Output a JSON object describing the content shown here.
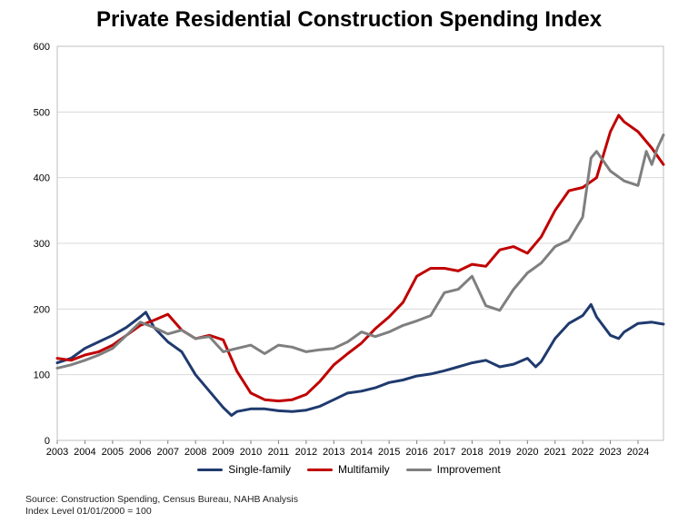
{
  "chart_data": {
    "type": "line",
    "title": "Private Residential Construction Spending Index",
    "xlabel": "",
    "ylabel": "",
    "xlim": [
      2003,
      2024.92
    ],
    "ylim": [
      0,
      600
    ],
    "y_ticks": [
      "0",
      "100",
      "200",
      "300",
      "400",
      "500",
      "600"
    ],
    "x_ticks": [
      "2003",
      "2004",
      "2005",
      "2006",
      "2007",
      "2008",
      "2009",
      "2010",
      "2011",
      "2012",
      "2013",
      "2014",
      "2015",
      "2016",
      "2017",
      "2018",
      "2019",
      "2020",
      "2021",
      "2022",
      "2023",
      "2024"
    ],
    "grid": true,
    "legend_position": "bottom",
    "series": [
      {
        "name": "Single-family",
        "color": "#1f3a6e",
        "x": [
          2003,
          2003.5,
          2004,
          2004.5,
          2005,
          2005.5,
          2006,
          2006.2,
          2006.5,
          2007,
          2007.5,
          2008,
          2008.5,
          2009,
          2009.3,
          2009.5,
          2010,
          2010.5,
          2011,
          2011.5,
          2012,
          2012.5,
          2013,
          2013.5,
          2014,
          2014.5,
          2015,
          2015.5,
          2016,
          2016.5,
          2017,
          2017.5,
          2018,
          2018.5,
          2019,
          2019.5,
          2020,
          2020.3,
          2020.5,
          2021,
          2021.5,
          2022,
          2022.3,
          2022.5,
          2023,
          2023.3,
          2023.5,
          2024,
          2024.5,
          2024.92
        ],
        "y": [
          118,
          125,
          140,
          150,
          160,
          172,
          188,
          195,
          172,
          150,
          135,
          100,
          75,
          50,
          38,
          44,
          48,
          48,
          45,
          44,
          46,
          52,
          62,
          72,
          75,
          80,
          88,
          92,
          98,
          101,
          106,
          112,
          118,
          122,
          112,
          116,
          125,
          112,
          120,
          155,
          178,
          190,
          207,
          188,
          160,
          155,
          165,
          178,
          180,
          177
        ]
      },
      {
        "name": "Multifamily",
        "color": "#c00000",
        "x": [
          2003,
          2003.5,
          2004,
          2004.5,
          2005,
          2005.5,
          2006,
          2006.5,
          2007,
          2007.5,
          2008,
          2008.5,
          2009,
          2009.5,
          2010,
          2010.5,
          2011,
          2011.5,
          2012,
          2012.5,
          2013,
          2013.5,
          2014,
          2014.5,
          2015,
          2015.5,
          2016,
          2016.5,
          2017,
          2017.5,
          2018,
          2018.5,
          2019,
          2019.5,
          2020,
          2020.5,
          2021,
          2021.5,
          2022,
          2022.5,
          2023,
          2023.3,
          2023.5,
          2024,
          2024.5,
          2024.92
        ],
        "y": [
          125,
          122,
          130,
          135,
          145,
          160,
          175,
          183,
          192,
          168,
          155,
          160,
          153,
          105,
          72,
          62,
          60,
          62,
          70,
          90,
          115,
          132,
          148,
          170,
          188,
          210,
          250,
          262,
          262,
          258,
          268,
          265,
          290,
          295,
          285,
          310,
          350,
          380,
          385,
          400,
          470,
          495,
          485,
          470,
          445,
          420
        ]
      },
      {
        "name": "Improvement",
        "color": "#7f7f7f",
        "x": [
          2003,
          2003.5,
          2004,
          2004.5,
          2005,
          2005.5,
          2006,
          2006.5,
          2007,
          2007.5,
          2008,
          2008.5,
          2009,
          2009.5,
          2010,
          2010.5,
          2011,
          2011.5,
          2012,
          2012.5,
          2013,
          2013.5,
          2014,
          2014.5,
          2015,
          2015.5,
          2016,
          2016.5,
          2017,
          2017.5,
          2018,
          2018.5,
          2019,
          2019.5,
          2020,
          2020.5,
          2021,
          2021.5,
          2022,
          2022.3,
          2022.5,
          2023,
          2023.5,
          2024,
          2024.3,
          2024.5,
          2024.7,
          2024.92
        ],
        "y": [
          110,
          115,
          122,
          130,
          140,
          160,
          180,
          172,
          162,
          168,
          155,
          158,
          135,
          140,
          145,
          132,
          145,
          142,
          135,
          138,
          140,
          150,
          165,
          158,
          165,
          175,
          182,
          190,
          225,
          230,
          250,
          205,
          198,
          230,
          255,
          270,
          295,
          305,
          340,
          430,
          440,
          410,
          395,
          388,
          440,
          420,
          445,
          465
        ]
      }
    ]
  },
  "legend": [
    {
      "label": "Single-family",
      "color": "#1f3a6e"
    },
    {
      "label": "Multifamily",
      "color": "#c00000"
    },
    {
      "label": "Improvement",
      "color": "#7f7f7f"
    }
  ],
  "footnote": {
    "line1": "Source: Construction Spending, Census Bureau, NAHB Analysis",
    "line2": "Index Level 01/01/2000 = 100"
  }
}
